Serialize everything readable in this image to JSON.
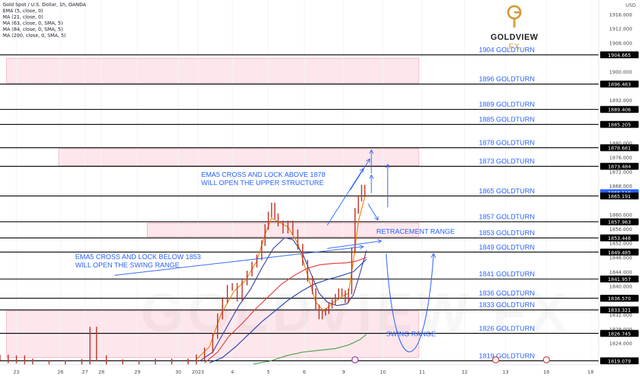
{
  "legend": {
    "title": "Gold Spot / U.S. Dollar, 1h, OANDA",
    "items": [
      "EMA (5, close, 0)",
      "MA (21, close, 0)",
      "MA (63, close, 0, SMA, 5)",
      "MA (84, close, 0, SMA, 5)",
      "MA (200, close, 0, SMA, 5)"
    ]
  },
  "currency": "USD",
  "logo": {
    "brand": "GOLDVIEW",
    "suffix": "FX",
    "watermark": "GOLDVIEW FX"
  },
  "colors": {
    "zone_fill": "#fde7ec",
    "zone_border": "#f4a4b4",
    "level_line": "#000000",
    "goldturn_text": "#2962ff",
    "annotation_text": "#2962ff",
    "arrow": "#2962ff",
    "ema5": "#f57c00",
    "ma21": "#3b3fa8",
    "ma63": "#e53935",
    "ma84": "#1e40af",
    "ma200": "#43a047",
    "candle": "#c0392b"
  },
  "chart_data": {
    "type": "line",
    "symbol": "Gold Spot / U.S. Dollar",
    "timeframe": "1h",
    "ylim": [
      1818,
      1920
    ],
    "y_ticks": [
      1916,
      1912,
      1908,
      1900,
      1892,
      1880,
      1876,
      1872,
      1868,
      1860,
      1856,
      1852,
      1848,
      1844,
      1840,
      1832,
      1828,
      1824
    ],
    "x_ticks": [
      "23",
      "26",
      "27",
      "28",
      "29",
      "30",
      "2023",
      "4",
      "5",
      "6",
      "9",
      "10",
      "11",
      "12",
      "13",
      "16",
      "18"
    ],
    "x_tick_positions": [
      1,
      3.7,
      5.2,
      6.2,
      8.4,
      10.9,
      12.1,
      14.2,
      16.4,
      18.6,
      21.0,
      23.4,
      25.8,
      28.4,
      30.9,
      33.4,
      36.1
    ],
    "xlim": [
      0,
      36.6
    ],
    "levels": [
      {
        "price": 1904.665,
        "label": "1904 GOLDTURN"
      },
      {
        "price": 1896.483,
        "label": "1896 GOLDTURN"
      },
      {
        "price": 1889.406,
        "label": "1889 GOLDTURN"
      },
      {
        "price": 1885.205,
        "label": "1885 GOLDTURN"
      },
      {
        "price": 1878.681,
        "label": "1878 GOLDTURN"
      },
      {
        "price": 1873.484,
        "label": "1873 GOLDTURN"
      },
      {
        "price": 1865.191,
        "label": "1865 GOLDTURN"
      },
      {
        "price": 1857.963,
        "label": "1857 GOLDTURN"
      },
      {
        "price": 1853.446,
        "label": "1853 GOLDTURN"
      },
      {
        "price": 1849.485,
        "label": "1849 GOLDTURN"
      },
      {
        "price": 1841.957,
        "label": "1841 GOLDTURN"
      },
      {
        "price": 1836.57,
        "label": "1836 GOLDTURN"
      },
      {
        "price": 1833.321,
        "label": "1833 GOLDTURN"
      },
      {
        "price": 1826.745,
        "label": "1826 GOLDTURN"
      },
      {
        "price": 1819.079,
        "label": "1819 GOLDTURN"
      }
    ],
    "axis_labels": [
      {
        "price": 1904.665,
        "text": "1904.665"
      },
      {
        "price": 1896.483,
        "text": "1896.483"
      },
      {
        "price": 1889.406,
        "text": "1889.406"
      },
      {
        "price": 1885.205,
        "text": "1885.205"
      },
      {
        "price": 1878.681,
        "text": "1878.681"
      },
      {
        "price": 1873.484,
        "text": "1873.484"
      },
      {
        "price": 1866.11,
        "text": "1866.110",
        "current": true
      },
      {
        "price": 1865.191,
        "text": "1865.191"
      },
      {
        "price": 1857.963,
        "text": "1857.963"
      },
      {
        "price": 1853.446,
        "text": "1853.446"
      },
      {
        "price": 1849.485,
        "text": "1849.485"
      },
      {
        "price": 1841.957,
        "text": "1841.957"
      },
      {
        "price": 1836.57,
        "text": "1836.570"
      },
      {
        "price": 1833.321,
        "text": "1833.321"
      },
      {
        "price": 1826.745,
        "text": "1826.745"
      },
      {
        "price": 1819.079,
        "text": "1819.079"
      }
    ],
    "zones": [
      {
        "x": [
          0.4,
          25.6
        ],
        "y": [
          1896.8,
          1903.7
        ]
      },
      {
        "x": [
          3.6,
          25.6
        ],
        "y": [
          1873.7,
          1878.4
        ]
      },
      {
        "x": [
          9.0,
          25.6
        ],
        "y": [
          1853.8,
          1857.6
        ]
      },
      {
        "x": [
          0.4,
          25.6
        ],
        "y": [
          1820.0,
          1833.0
        ]
      }
    ],
    "price": [
      [
        0.0,
        1820.0
      ],
      [
        0.5,
        1819.2
      ],
      [
        1.0,
        1819.8
      ],
      [
        1.5,
        1818.9
      ],
      [
        2.0,
        1818.5
      ],
      [
        3.0,
        1818.2
      ],
      [
        4.0,
        1818.4
      ],
      [
        5.0,
        1818.8
      ],
      [
        5.5,
        1827.8
      ],
      [
        5.9,
        1819.8
      ],
      [
        6.5,
        1818.7
      ],
      [
        7.5,
        1818.2
      ],
      [
        8.5,
        1818.4
      ],
      [
        9.5,
        1818.9
      ],
      [
        10.5,
        1818.7
      ],
      [
        11.5,
        1818.9
      ],
      [
        12.0,
        1820.0
      ],
      [
        12.5,
        1822.0
      ],
      [
        13.0,
        1826.0
      ],
      [
        13.3,
        1831.5
      ],
      [
        13.6,
        1836.0
      ],
      [
        13.9,
        1839.5
      ],
      [
        14.2,
        1840.0
      ],
      [
        14.5,
        1836.5
      ],
      [
        14.8,
        1841.0
      ],
      [
        15.1,
        1843.5
      ],
      [
        15.4,
        1846.0
      ],
      [
        15.7,
        1848.0
      ],
      [
        16.0,
        1852.0
      ],
      [
        16.2,
        1856.5
      ],
      [
        16.4,
        1860.0
      ],
      [
        16.6,
        1862.5
      ],
      [
        16.8,
        1859.5
      ],
      [
        17.0,
        1857.5
      ],
      [
        17.3,
        1855.5
      ],
      [
        17.6,
        1857.5
      ],
      [
        17.9,
        1855.0
      ],
      [
        18.2,
        1851.0
      ],
      [
        18.5,
        1846.5
      ],
      [
        18.8,
        1842.0
      ],
      [
        19.1,
        1838.5
      ],
      [
        19.3,
        1834.0
      ],
      [
        19.5,
        1831.5
      ],
      [
        19.7,
        1832.5
      ],
      [
        19.9,
        1833.0
      ],
      [
        20.1,
        1834.5
      ],
      [
        20.3,
        1835.5
      ],
      [
        20.5,
        1837.0
      ],
      [
        20.7,
        1838.5
      ],
      [
        20.9,
        1838.0
      ],
      [
        21.1,
        1836.0
      ],
      [
        21.3,
        1838.5
      ],
      [
        21.5,
        1850.0
      ],
      [
        21.7,
        1861.0
      ],
      [
        21.9,
        1864.5
      ],
      [
        22.1,
        1867.5
      ],
      [
        22.3,
        1866.1
      ]
    ],
    "series": [
      {
        "name": "EMA (5, close, 0)",
        "points": [
          [
            12.0,
            1819.5
          ],
          [
            12.8,
            1823.0
          ],
          [
            13.5,
            1832.0
          ],
          [
            14.3,
            1838.5
          ],
          [
            15.0,
            1841.5
          ],
          [
            15.7,
            1847.0
          ],
          [
            16.2,
            1854.5
          ],
          [
            16.6,
            1859.0
          ],
          [
            17.0,
            1858.0
          ],
          [
            17.6,
            1856.5
          ],
          [
            18.2,
            1852.0
          ],
          [
            18.8,
            1843.0
          ],
          [
            19.3,
            1835.5
          ],
          [
            19.8,
            1833.0
          ],
          [
            20.4,
            1835.5
          ],
          [
            20.9,
            1837.0
          ],
          [
            21.3,
            1838.0
          ],
          [
            21.6,
            1847.0
          ],
          [
            21.9,
            1858.0
          ],
          [
            22.3,
            1865.0
          ]
        ]
      },
      {
        "name": "MA (21, close, 0)",
        "points": [
          [
            12.2,
            1819.0
          ],
          [
            13.0,
            1821.5
          ],
          [
            13.8,
            1828.0
          ],
          [
            14.6,
            1834.5
          ],
          [
            15.3,
            1839.0
          ],
          [
            16.0,
            1845.0
          ],
          [
            16.7,
            1850.5
          ],
          [
            17.4,
            1853.5
          ],
          [
            17.9,
            1853.0
          ],
          [
            18.5,
            1849.0
          ],
          [
            19.0,
            1843.5
          ],
          [
            19.5,
            1838.0
          ],
          [
            20.0,
            1835.5
          ],
          [
            20.6,
            1834.5
          ],
          [
            21.2,
            1835.0
          ],
          [
            21.6,
            1837.5
          ],
          [
            22.0,
            1843.5
          ],
          [
            22.4,
            1850.0
          ]
        ]
      },
      {
        "name": "MA (63, close, 0, SMA, 5)",
        "points": [
          [
            12.5,
            1818.5
          ],
          [
            13.3,
            1821.5
          ],
          [
            14.0,
            1826.0
          ],
          [
            14.8,
            1829.5
          ],
          [
            15.6,
            1833.5
          ],
          [
            16.4,
            1837.0
          ],
          [
            17.2,
            1840.5
          ],
          [
            18.0,
            1843.0
          ],
          [
            18.8,
            1845.0
          ],
          [
            19.6,
            1846.0
          ],
          [
            20.4,
            1846.3
          ],
          [
            21.2,
            1846.5
          ],
          [
            21.8,
            1847.0
          ],
          [
            22.4,
            1848.0
          ]
        ]
      },
      {
        "name": "MA (84, close, 0, SMA, 5)",
        "points": [
          [
            12.8,
            1818.5
          ],
          [
            13.6,
            1820.0
          ],
          [
            14.4,
            1823.0
          ],
          [
            15.2,
            1826.5
          ],
          [
            16.0,
            1830.0
          ],
          [
            16.8,
            1833.0
          ],
          [
            17.6,
            1836.0
          ],
          [
            18.4,
            1838.5
          ],
          [
            19.2,
            1840.5
          ],
          [
            20.0,
            1841.8
          ],
          [
            20.8,
            1842.8
          ],
          [
            21.6,
            1844.0
          ],
          [
            22.4,
            1847.5
          ]
        ]
      },
      {
        "name": "MA (200, close, 0, SMA, 5)",
        "points": [
          [
            15.5,
            1818.2
          ],
          [
            16.5,
            1819.0
          ],
          [
            17.5,
            1820.5
          ],
          [
            18.5,
            1821.5
          ],
          [
            19.5,
            1822.0
          ],
          [
            20.5,
            1822.5
          ],
          [
            21.3,
            1823.5
          ],
          [
            22.0,
            1825.0
          ],
          [
            22.4,
            1826.5
          ]
        ]
      }
    ],
    "annotations": [
      {
        "lines": [
          "EMA5 CROSS AND LOCK ABOVE 1878",
          "WILL OPEN THE UPPER STRUCTURE"
        ],
        "x": 12.3,
        "y": 1870.5
      },
      {
        "lines": [
          "EMA5 CROSS AND LOCK BELOW 1853",
          "WILL OPEN THE SWING RANGE"
        ],
        "x": 4.6,
        "y": 1847.5
      },
      {
        "lines": [
          "RETRACEMENT RANGE"
        ],
        "x": 23.0,
        "y": 1854.6
      },
      {
        "lines": [
          "SWING RANGE"
        ],
        "x": 23.6,
        "y": 1826.0
      }
    ]
  }
}
